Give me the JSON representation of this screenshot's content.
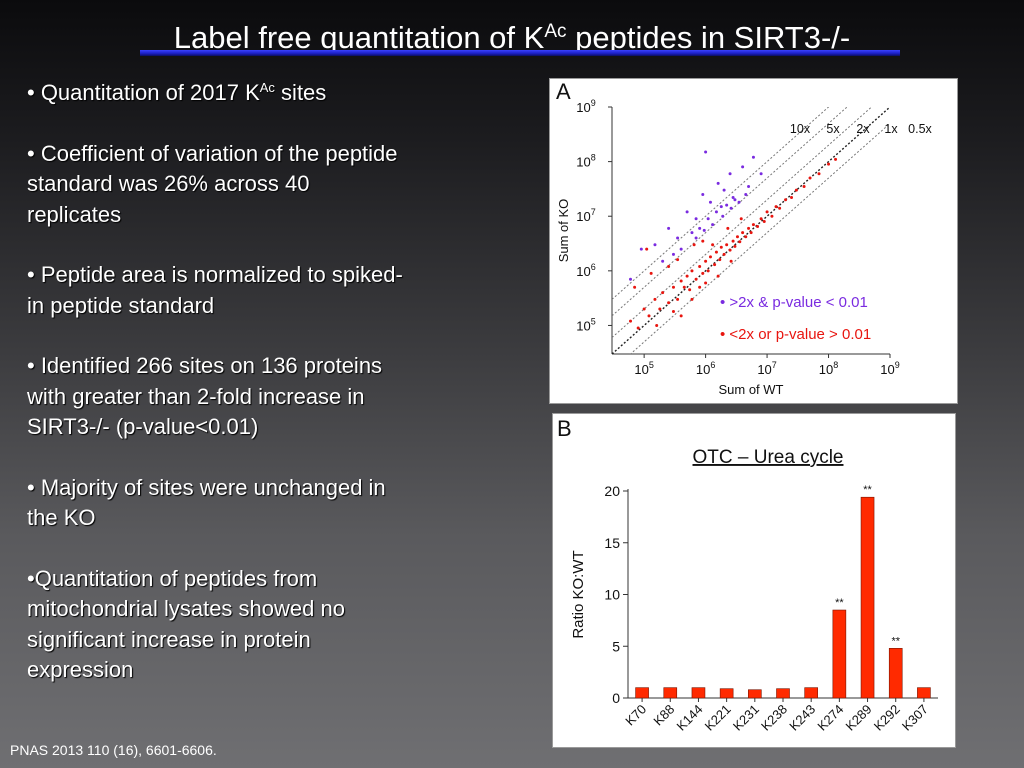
{
  "slide": {
    "title_text": "Label free quantitation of K",
    "title_superscript": "Ac",
    "title_suffix": " peptides in SIRT3-/-",
    "footer": "PNAS 2013 110 (16), 6601-6606."
  },
  "bullets": [
    {
      "prefix": "• Quantitation of 2017 K",
      "superscript": "Ac",
      "suffix": " sites"
    },
    {
      "prefix": "• Coefficient of variation of the peptide standard was 26% across 40 replicates"
    },
    {
      "prefix": "• Peptide area is normalized to spiked-in peptide standard"
    },
    {
      "prefix": "• Identified 266 sites on 136 proteins with greater than 2-fold increase in SIRT3-/- (p-value<0.01)"
    },
    {
      "prefix": "• Majority of sites were unchanged in the KO"
    },
    {
      "prefix": "•Quantitation of peptides from mitochondrial lysates showed no significant increase in protein expression"
    }
  ],
  "colors": {
    "title_rule": "#2b32e6",
    "significant": "#7a2be0",
    "unchanged": "#e8150f",
    "bar_fill": "#ff2a00"
  },
  "chart_data": [
    {
      "type": "scatter",
      "panel_label": "A",
      "xlabel": "Sum of WT",
      "ylabel": "Sum of KO",
      "xscale": "log",
      "yscale": "log",
      "xlim": [
        30000,
        1000000000
      ],
      "ylim": [
        30000,
        1000000000
      ],
      "x_ticks": [
        {
          "base": "10",
          "exp": "5",
          "value": 100000
        },
        {
          "base": "10",
          "exp": "6",
          "value": 1000000
        },
        {
          "base": "10",
          "exp": "7",
          "value": 10000000
        },
        {
          "base": "10",
          "exp": "8",
          "value": 100000000
        },
        {
          "base": "10",
          "exp": "9",
          "value": 1000000000
        }
      ],
      "y_ticks": [
        {
          "base": "10",
          "exp": "5",
          "value": 100000
        },
        {
          "base": "10",
          "exp": "6",
          "value": 1000000
        },
        {
          "base": "10",
          "exp": "7",
          "value": 10000000
        },
        {
          "base": "10",
          "exp": "8",
          "value": 100000000
        },
        {
          "base": "10",
          "exp": "9",
          "value": 1000000000
        }
      ],
      "reference_lines": [
        {
          "label": "10x",
          "ratio": 10
        },
        {
          "label": "5x",
          "ratio": 5
        },
        {
          "label": "2x",
          "ratio": 2
        },
        {
          "label": "1x",
          "ratio": 1
        },
        {
          "label": "0.5x",
          "ratio": 0.5
        }
      ],
      "legend": [
        {
          "text": "• >2x & p-value < 0.01",
          "color": "#7a2be0"
        },
        {
          "text": "• <2x or p-value > 0.01",
          "color": "#e8150f"
        }
      ],
      "legend_position": "bottom-right",
      "series": [
        {
          "color": "#7a2be0",
          "points": [
            [
              60000,
              700000
            ],
            [
              90000,
              2500000
            ],
            [
              150000,
              3000000
            ],
            [
              250000,
              6000000
            ],
            [
              350000,
              4000000
            ],
            [
              500000,
              12000000
            ],
            [
              700000,
              9000000
            ],
            [
              900000,
              25000000
            ],
            [
              1200000,
              18000000
            ],
            [
              1600000,
              40000000
            ],
            [
              2000000,
              30000000
            ],
            [
              2500000,
              60000000
            ],
            [
              3000000,
              20000000
            ],
            [
              4000000,
              80000000
            ],
            [
              5000000,
              35000000
            ],
            [
              6000000,
              120000000
            ],
            [
              800000,
              6000000
            ],
            [
              400000,
              2500000
            ],
            [
              1100000,
              9000000
            ],
            [
              1500000,
              12000000
            ],
            [
              1800000,
              15000000
            ],
            [
              2200000,
              16000000
            ],
            [
              2800000,
              22000000
            ],
            [
              600000,
              5000000
            ],
            [
              300000,
              2000000
            ],
            [
              700000,
              4000000
            ],
            [
              1300000,
              7000000
            ],
            [
              2600000,
              14000000
            ],
            [
              3500000,
              18000000
            ],
            [
              4500000,
              25000000
            ],
            [
              200000,
              1500000
            ],
            [
              1000000,
              150000000
            ],
            [
              8000000,
              60000000
            ],
            [
              1900000,
              10000000
            ],
            [
              950000,
              5500000
            ]
          ]
        },
        {
          "color": "#e8150f",
          "points": [
            [
              60000,
              120000
            ],
            [
              80000,
              90000
            ],
            [
              100000,
              200000
            ],
            [
              120000,
              150000
            ],
            [
              150000,
              300000
            ],
            [
              180000,
              200000
            ],
            [
              200000,
              400000
            ],
            [
              250000,
              260000
            ],
            [
              300000,
              500000
            ],
            [
              350000,
              300000
            ],
            [
              400000,
              650000
            ],
            [
              450000,
              500000
            ],
            [
              500000,
              800000
            ],
            [
              550000,
              450000
            ],
            [
              600000,
              1000000
            ],
            [
              700000,
              700000
            ],
            [
              800000,
              1200000
            ],
            [
              900000,
              900000
            ],
            [
              1000000,
              1500000
            ],
            [
              1100000,
              1000000
            ],
            [
              1200000,
              1800000
            ],
            [
              1400000,
              1300000
            ],
            [
              1500000,
              2200000
            ],
            [
              1700000,
              1600000
            ],
            [
              1800000,
              2700000
            ],
            [
              2000000,
              2000000
            ],
            [
              2200000,
              3000000
            ],
            [
              2500000,
              2400000
            ],
            [
              2800000,
              3500000
            ],
            [
              3000000,
              2800000
            ],
            [
              3300000,
              4200000
            ],
            [
              3600000,
              3400000
            ],
            [
              4000000,
              5000000
            ],
            [
              4500000,
              4200000
            ],
            [
              5000000,
              6000000
            ],
            [
              5500000,
              5000000
            ],
            [
              6000000,
              7000000
            ],
            [
              7000000,
              6500000
            ],
            [
              8000000,
              9000000
            ],
            [
              9000000,
              8000000
            ],
            [
              10000000,
              12000000
            ],
            [
              12000000,
              10000000
            ],
            [
              14000000,
              15000000
            ],
            [
              16000000,
              14000000
            ],
            [
              20000000,
              20000000
            ],
            [
              25000000,
              22000000
            ],
            [
              30000000,
              30000000
            ],
            [
              40000000,
              35000000
            ],
            [
              50000000,
              50000000
            ],
            [
              70000000,
              60000000
            ],
            [
              100000000,
              90000000
            ],
            [
              130000000,
              110000000
            ],
            [
              70000,
              500000
            ],
            [
              110000,
              2500000
            ],
            [
              250000,
              1200000
            ],
            [
              160000,
              100000
            ],
            [
              130000,
              900000
            ],
            [
              350000,
              1600000
            ],
            [
              650000,
              3000000
            ],
            [
              900000,
              3500000
            ],
            [
              1300000,
              3000000
            ],
            [
              2300000,
              6000000
            ],
            [
              3800000,
              9000000
            ],
            [
              400000,
              150000
            ],
            [
              600000,
              300000
            ],
            [
              1000000,
              600000
            ],
            [
              1600000,
              800000
            ],
            [
              2600000,
              1500000
            ],
            [
              800000,
              500000
            ],
            [
              300000,
              180000
            ]
          ]
        }
      ]
    },
    {
      "type": "bar",
      "panel_label": "B",
      "title": "OTC – Urea cycle",
      "ylabel": "Ratio KO:WT",
      "ylim": [
        0,
        20
      ],
      "y_ticks": [
        "0",
        "5",
        "10",
        "15",
        "20"
      ],
      "categories": [
        "K70",
        "K88",
        "K144",
        "K221",
        "K231",
        "K238",
        "K243",
        "K274",
        "K289",
        "K292",
        "K307"
      ],
      "values": [
        1.0,
        1.0,
        1.0,
        0.9,
        0.8,
        0.9,
        1.0,
        8.5,
        19.4,
        4.8,
        1.0
      ],
      "annotations": [
        "",
        "",
        "",
        "",
        "",
        "",
        "",
        "**",
        "**",
        "**",
        ""
      ]
    }
  ]
}
